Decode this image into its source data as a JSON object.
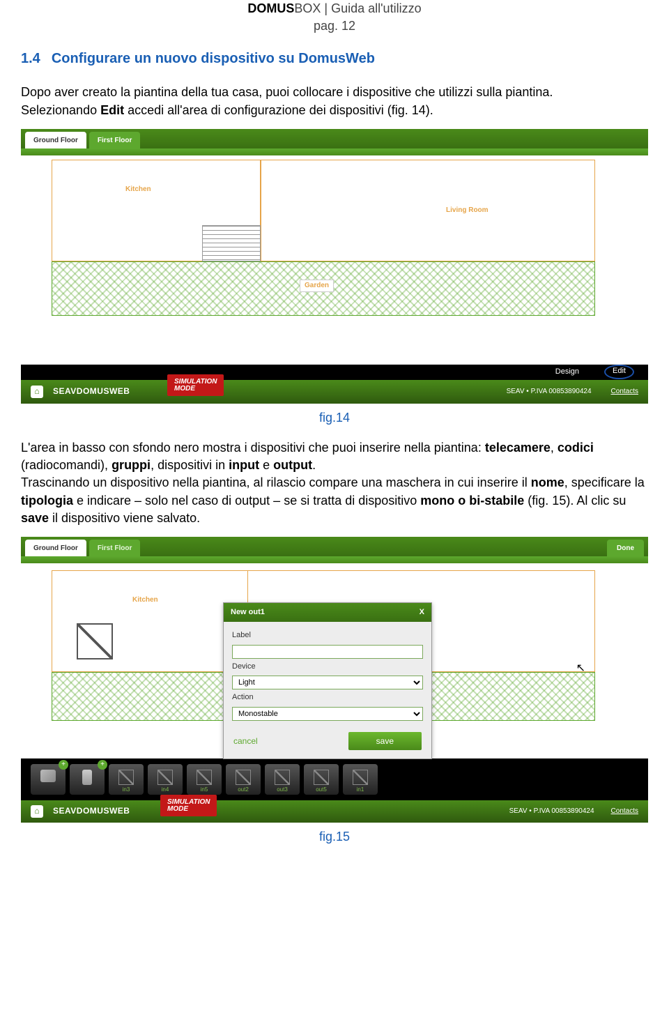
{
  "doc": {
    "title_bold": "DOMUS",
    "title_rest": "BOX | Guida all'utilizzo",
    "page_label": "pag. 12"
  },
  "section": {
    "number": "1.4",
    "heading": "Configurare un nuovo dispositivo su DomusWeb"
  },
  "para1_a": "Dopo aver creato la piantina della tua casa, puoi collocare i dispositive che utilizzi sulla piantina.",
  "para1_b_pre": "Selezionando ",
  "para1_b_bold": "Edit",
  "para1_b_post": " accedi all'area di configurazione dei dispositivi (fig. 14).",
  "fig14": {
    "caption": "fig.14",
    "tabs": {
      "active": "Ground Floor",
      "inactive": "First Floor"
    },
    "rooms": {
      "kitchen": "Kitchen",
      "living": "Living Room",
      "garden": "Garden"
    },
    "blackbar": {
      "design": "Design",
      "edit": "Edit"
    },
    "brand": "SEAVDOMUSWEB",
    "sim1": "SIMULATION",
    "sim2": "MODE",
    "piva": "SEAV • P.IVA 00853890424",
    "contacts": "Contacts",
    "colors": {
      "green1": "#5da82e",
      "green2": "#4a8a1a",
      "orange": "#e6a54a",
      "red": "#c31818",
      "link_blue": "#1a5fb4"
    }
  },
  "para2_a": "L'area in basso con sfondo nero mostra i dispositivi che puoi inserire nella piantina: ",
  "para2_bold1": "telecamere",
  "para2_sep1": ", ",
  "para2_bold2": "codici",
  "para2_paren": " (radiocomandi), ",
  "para2_bold3": "gruppi",
  "para2_mid": ", dispositivi in ",
  "para2_bold4": "input",
  "para2_e": " e ",
  "para2_bold5": "output",
  "para2_dot": ".",
  "para3_a": "Trascinando un dispositivo nella piantina, al rilascio compare una maschera in cui inserire il ",
  "para3_b1": "nome",
  "para3_b": ", specificare la ",
  "para3_b2": "tipologia",
  "para3_c": " e indicare – solo nel caso di output – se si tratta di dispositivo ",
  "para3_b3": "mono o bi-stabile",
  "para3_d": " (fig. 15). Al clic su ",
  "para3_b4": "save",
  "para3_e": " il dispositivo viene salvato.",
  "fig15": {
    "caption": "fig.15",
    "tabs": {
      "active": "Ground Floor",
      "inactive": "First Floor",
      "done": "Done"
    },
    "kitchen": "Kitchen",
    "modal": {
      "title": "New out1",
      "close": "X",
      "label_lbl": "Label",
      "label_val": "",
      "device_lbl": "Device",
      "device_val": "Light",
      "action_lbl": "Action",
      "action_val": "Monostable",
      "cancel": "cancel",
      "save": "save"
    },
    "tray": {
      "items": [
        "",
        "",
        "in3",
        "in4",
        "in5",
        "out2",
        "out3",
        "out5",
        "in1"
      ]
    },
    "brand": "SEAVDOMUSWEB",
    "sim1": "SIMULATION",
    "sim2": "MODE",
    "piva": "SEAV • P.IVA 00853890424",
    "contacts": "Contacts"
  }
}
